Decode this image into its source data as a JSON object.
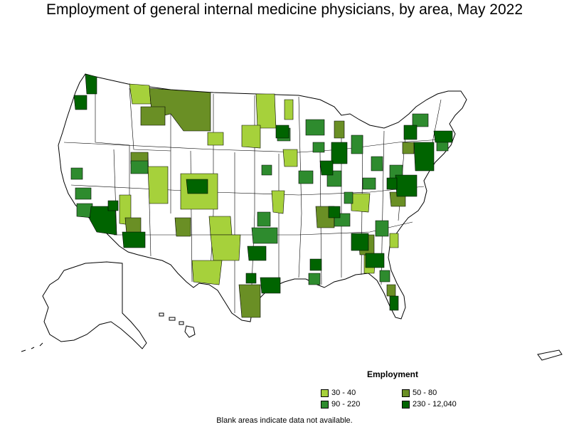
{
  "title": "Employment of general internal medicine physicians, by area, May 2022",
  "legend": {
    "title": "Employment",
    "items": [
      {
        "label": "30 - 40",
        "color": "#a6d13b"
      },
      {
        "label": "50 - 80",
        "color": "#6a8f25"
      },
      {
        "label": "90 - 220",
        "color": "#2e8b2e"
      },
      {
        "label": "230 - 12,040",
        "color": "#006400"
      }
    ]
  },
  "footnote": "Blank areas indicate data not available."
}
